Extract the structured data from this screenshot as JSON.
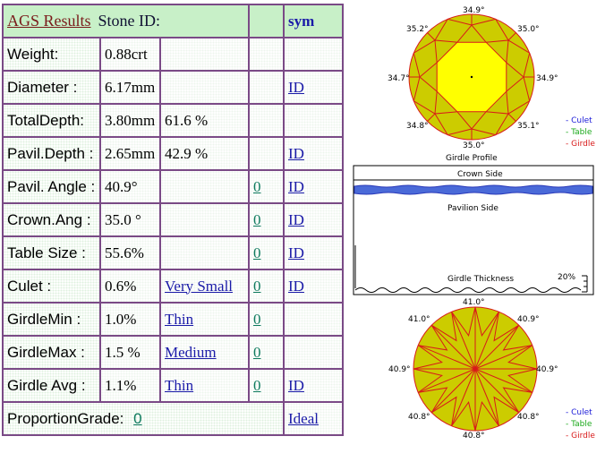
{
  "header": {
    "title": "AGS  Results",
    "stone_label": "Stone ID:",
    "sym": "sym"
  },
  "rows": [
    {
      "label": "Weight:",
      "value": "0.88crt",
      "extra": "",
      "grade": "",
      "link": ""
    },
    {
      "label": "Diameter :",
      "value": "6.17mm",
      "extra": "",
      "grade": "",
      "link": "ID"
    },
    {
      "label": "TotalDepth:",
      "value": "3.80mm",
      "extra": "61.6 %",
      "grade": "",
      "link": ""
    },
    {
      "label": "Pavil.Depth :",
      "value": "2.65mm",
      "extra": "42.9 %",
      "grade": "",
      "link": "ID"
    },
    {
      "label": "Pavil. Angle :",
      "value": "40.9°",
      "extra": "",
      "grade": "0",
      "link": "ID "
    },
    {
      "label": "Crown.Ang :",
      "value": "35.0 °",
      "extra": "",
      "grade": "0",
      "link": "ID"
    },
    {
      "label": "Table Size :",
      "value": "55.6%",
      "extra": "",
      "grade": "0",
      "link": "ID"
    },
    {
      "label": "Culet :",
      "value": "0.6%",
      "extra": "Very Small",
      "grade": "0",
      "link": "ID"
    },
    {
      "label": "GirdleMin :",
      "value": "1.0%",
      "extra": "Thin",
      "grade": "0",
      "link": ""
    },
    {
      "label": "GirdleMax :",
      "value": "1.5 %",
      "extra": "Medium ",
      "grade": "0",
      "link": ""
    },
    {
      "label": "Girdle Avg :",
      "value": "1.1%",
      "extra": "Thin ",
      "grade": "0 ",
      "link": "ID "
    }
  ],
  "proportion": {
    "label": "ProportionGrade:",
    "grade": "0",
    "link": "Ideal "
  },
  "crown_view": {
    "angles": [
      "34.9°",
      "35.0°",
      "34.9°",
      "35.1°",
      "35.0°",
      "34.8°",
      "34.7°",
      "35.2°"
    ],
    "caption": "Girdle Profile",
    "legend": [
      "- Culet",
      "- Table",
      "- Girdle"
    ]
  },
  "profile": {
    "crown_label": "Crown Side",
    "pavilion_label": "Pavilion Side",
    "thickness_label": "Girdle Thickness",
    "pct": "20%"
  },
  "pavilion_view": {
    "angles": [
      "41.0°",
      "40.9°",
      "40.9°",
      "40.8°",
      "40.8°",
      "40.8°",
      "40.9°",
      "41.0°"
    ],
    "legend": [
      "- Culet",
      "- Table",
      "- Girdle"
    ]
  },
  "colors": {
    "culet": "#1a1ad8",
    "table": "#1aa81a",
    "girdle": "#d81a1a",
    "crown_fill": "#cccc00",
    "table_fill": "#ffff00",
    "border": "#7a4a86",
    "header_bg": "#c8f0c8"
  }
}
